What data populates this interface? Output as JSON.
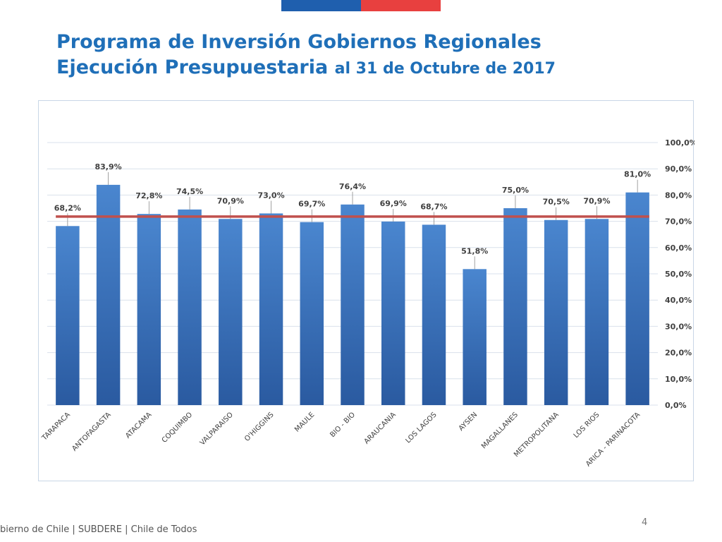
{
  "header": {
    "title_line1": "Programa de Inversión Gobiernos Regionales",
    "title_line2_bold": "Ejecución Presupuestaria",
    "title_line2_rest": "al 31 de Octubre de 2017",
    "flag_colors": [
      "#1f5fae",
      "#e8403f"
    ]
  },
  "footer": {
    "text": "bierno de Chile | SUBDERE | Chile de Todos",
    "page_number": "4"
  },
  "chart_data": {
    "type": "bar",
    "title": "",
    "xlabel": "",
    "ylabel": "",
    "categories": [
      "TARAPACA",
      "ANTOFAGASTA",
      "ATACAMA",
      "COQUIMBO",
      "VALPARAISO",
      "O'HIGGINS",
      "MAULE",
      "BIO - BIO",
      "ARAUCANIA",
      "LOS LAGOS",
      "AYSEN",
      "MAGALLANES",
      "METROPOLITANA",
      "LOS RIOS",
      "ARICA - PARINACOTA"
    ],
    "values": [
      68.2,
      83.9,
      72.8,
      74.5,
      70.9,
      73.0,
      69.7,
      76.4,
      69.9,
      68.7,
      51.8,
      75.0,
      70.5,
      70.9,
      81.0
    ],
    "value_labels": [
      "68,2%",
      "83,9%",
      "72,8%",
      "74,5%",
      "70,9%",
      "73,0%",
      "69,7%",
      "76,4%",
      "69,9%",
      "68,7%",
      "51,8%",
      "75,0%",
      "70,5%",
      "70,9%",
      "81,0%"
    ],
    "reference_line": 71.8,
    "ylim": [
      0,
      100
    ],
    "y_ticks": [
      0,
      10,
      20,
      30,
      40,
      50,
      60,
      70,
      80,
      90,
      100
    ],
    "y_tick_labels": [
      "0,0%",
      "10,0%",
      "20,0%",
      "30,0%",
      "40,0%",
      "50,0%",
      "60,0%",
      "70,0%",
      "80,0%",
      "90,0%",
      "100,0%"
    ],
    "y_axis_side": "right",
    "grid": true,
    "colors": {
      "bar_top": "#4a86cf",
      "bar_bottom": "#2a5aa0",
      "reference_line": "#c0504d",
      "grid": "#d9e1ec",
      "label_text": "#404040"
    }
  }
}
